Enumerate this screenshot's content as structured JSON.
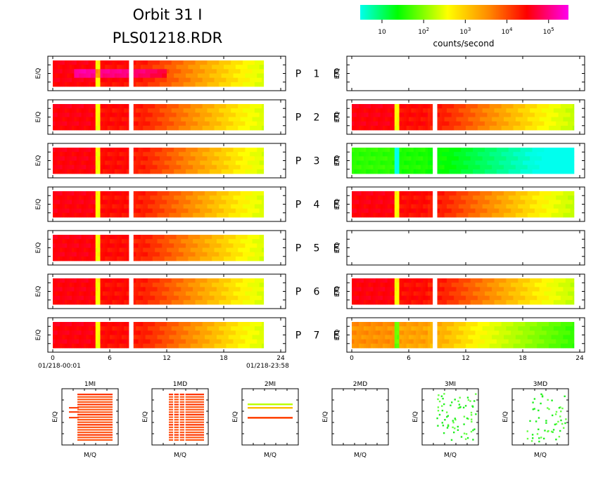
{
  "chart_data": {
    "type": "heatmap",
    "title_line1": "Orbit 31 I",
    "title_line2": "PLS01218.RDR",
    "colorbar": {
      "label": "counts/second",
      "scale": "log",
      "ticks": [
        {
          "base": "10",
          "exp": ""
        },
        {
          "base": "10",
          "exp": "2"
        },
        {
          "base": "10",
          "exp": "3"
        },
        {
          "base": "10",
          "exp": "4"
        },
        {
          "base": "10",
          "exp": "5"
        }
      ],
      "tick_values": [
        10,
        100,
        1000,
        10000,
        100000
      ],
      "range": [
        3,
        300000
      ],
      "colors": [
        "#00ffee",
        "#00ff00",
        "#ffff00",
        "#ff8800",
        "#ff0000",
        "#ff00ee"
      ]
    },
    "y_label": "E/Q",
    "time_axis": {
      "range": [
        0,
        24
      ],
      "ticks": [
        "0",
        "6",
        "12",
        "18",
        "24"
      ],
      "tick_values": [
        0,
        6,
        12,
        18,
        24
      ],
      "start_label": "01/218-00:01",
      "end_label": "01/218-23:58"
    },
    "panel_pairs": [
      {
        "p": "P",
        "n": "1",
        "e": "E",
        "left_has_data": true,
        "right_has_data": false,
        "right_level": 0
      },
      {
        "p": "P",
        "n": "2",
        "e": "E",
        "left_has_data": true,
        "right_has_data": true,
        "right_level": 0.0
      },
      {
        "p": "P",
        "n": "3",
        "e": "E",
        "left_has_data": true,
        "right_has_data": true,
        "right_level": -2.6
      },
      {
        "p": "P",
        "n": "4",
        "e": "E",
        "left_has_data": true,
        "right_has_data": true,
        "right_level": 0.0
      },
      {
        "p": "P",
        "n": "5",
        "e": "E",
        "left_has_data": true,
        "right_has_data": false,
        "right_level": 0
      },
      {
        "p": "P",
        "n": "6",
        "e": "E",
        "left_has_data": true,
        "right_has_data": true,
        "right_level": 0.0
      },
      {
        "p": "P",
        "n": "7",
        "e": "E",
        "left_has_data": true,
        "right_has_data": true,
        "right_level": -0.8
      }
    ],
    "mass_panels": [
      {
        "title": "1MI",
        "pattern": "dense"
      },
      {
        "title": "1MD",
        "pattern": "dense2"
      },
      {
        "title": "2MI",
        "pattern": "lines"
      },
      {
        "title": "2MD",
        "pattern": "empty"
      },
      {
        "title": "3MI",
        "pattern": "sparse"
      },
      {
        "title": "3MD",
        "pattern": "sparse2"
      }
    ],
    "mass_x_label": "M/Q",
    "mass_y_label": "E/Q"
  }
}
